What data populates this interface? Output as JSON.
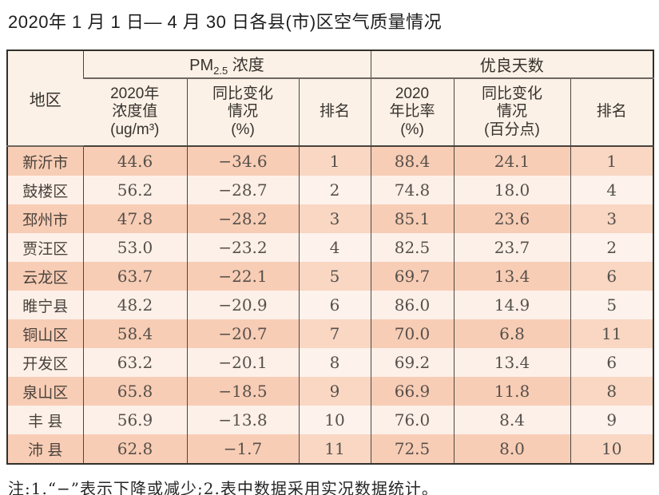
{
  "title": "2020年 1 月 1 日— 4 月 30 日各县(市)区空气质量情况",
  "table": {
    "corner_header": "地区",
    "group_pm25": {
      "prefix": "PM",
      "sub": "2.5",
      "suffix": " 浓度"
    },
    "group_good_days": "优良天数",
    "sub_headers": [
      {
        "name": "subheader-pm25-2020-value",
        "lines": [
          "2020年",
          "浓度值",
          "(ug/m³)"
        ]
      },
      {
        "name": "subheader-pm25-yoy-change",
        "lines": [
          "同比变化",
          "情况",
          "(%)"
        ]
      },
      {
        "name": "subheader-pm25-rank",
        "lines": [
          "排名"
        ]
      },
      {
        "name": "subheader-good-rate-2020",
        "lines": [
          "2020",
          "年比率",
          "(%)"
        ]
      },
      {
        "name": "subheader-good-yoy-change",
        "lines": [
          "同比变化",
          "情况",
          "(百分点)"
        ]
      },
      {
        "name": "subheader-good-rank",
        "lines": [
          "排名"
        ]
      }
    ],
    "rows": [
      {
        "region": "新沂市",
        "pm25_value": "44.6",
        "pm25_change": "−34.6",
        "pm25_rank": "1",
        "good_rate": "88.4",
        "good_change": "24.1",
        "good_rank": "1"
      },
      {
        "region": "鼓楼区",
        "pm25_value": "56.2",
        "pm25_change": "−28.7",
        "pm25_rank": "2",
        "good_rate": "74.8",
        "good_change": "18.0",
        "good_rank": "4"
      },
      {
        "region": "邳州市",
        "pm25_value": "47.8",
        "pm25_change": "−28.2",
        "pm25_rank": "3",
        "good_rate": "85.1",
        "good_change": "23.6",
        "good_rank": "3"
      },
      {
        "region": "贾汪区",
        "pm25_value": "53.0",
        "pm25_change": "−23.2",
        "pm25_rank": "4",
        "good_rate": "82.5",
        "good_change": "23.7",
        "good_rank": "2"
      },
      {
        "region": "云龙区",
        "pm25_value": "63.7",
        "pm25_change": "−22.1",
        "pm25_rank": "5",
        "good_rate": "69.7",
        "good_change": "13.4",
        "good_rank": "6"
      },
      {
        "region": "睢宁县",
        "pm25_value": "48.2",
        "pm25_change": "−20.9",
        "pm25_rank": "6",
        "good_rate": "86.0",
        "good_change": "14.9",
        "good_rank": "5"
      },
      {
        "region": "铜山区",
        "pm25_value": "58.4",
        "pm25_change": "−20.7",
        "pm25_rank": "7",
        "good_rate": "70.0",
        "good_change": "6.8",
        "good_rank": "11"
      },
      {
        "region": "开发区",
        "pm25_value": "63.2",
        "pm25_change": "−20.1",
        "pm25_rank": "8",
        "good_rate": "69.2",
        "good_change": "13.4",
        "good_rank": "6"
      },
      {
        "region": "泉山区",
        "pm25_value": "65.8",
        "pm25_change": "−18.5",
        "pm25_rank": "9",
        "good_rate": "66.9",
        "good_change": "11.8",
        "good_rank": "8"
      },
      {
        "region": "丰 县",
        "pm25_value": "56.9",
        "pm25_change": "−13.8",
        "pm25_rank": "10",
        "good_rate": "76.0",
        "good_change": "8.4",
        "good_rank": "9"
      },
      {
        "region": "沛 县",
        "pm25_value": "62.8",
        "pm25_change": "−1.7",
        "pm25_rank": "11",
        "good_rate": "72.5",
        "good_change": "8.0",
        "good_rank": "10"
      }
    ]
  },
  "note": "注:1.“−”表示下降或减少;2.表中数据采用实况数据统计。",
  "colors": {
    "peach_row": "#f8cdb5",
    "light_row": "#fdf0e9",
    "rank_peach": "#f9d7c3",
    "header_bg": "#fbf1e7",
    "border": "#4c4741"
  }
}
